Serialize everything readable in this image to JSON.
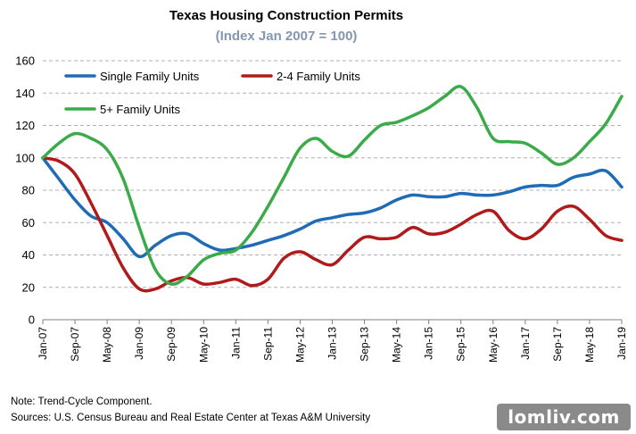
{
  "chart_data": {
    "type": "line",
    "title": "Texas Housing Construction Permits",
    "subtitle": "(Index Jan 2007 = 100)",
    "ylim": [
      0,
      160
    ],
    "yticks": [
      0,
      20,
      40,
      60,
      80,
      100,
      120,
      140,
      160
    ],
    "x_domain": [
      "Jan-07",
      "Jan-19"
    ],
    "x_tick_labels": [
      "Jan-07",
      "Sep-07",
      "May-08",
      "Jan-09",
      "Sep-09",
      "May-10",
      "Jan-11",
      "Sep-11",
      "May-12",
      "Jan-13",
      "Sep-13",
      "May-14",
      "Jan-15",
      "Sep-15",
      "May-16",
      "Jan-17",
      "Sep-17",
      "May-18",
      "Jan-19"
    ],
    "grid": "horizontal-dashed",
    "legend_position": "top-left",
    "series": [
      {
        "name": "Single Family Units",
        "color": "#1f6bb5",
        "points": [
          [
            "Jan-07",
            100
          ],
          [
            "May-07",
            87
          ],
          [
            "Sep-07",
            74
          ],
          [
            "Jan-08",
            64
          ],
          [
            "May-08",
            60
          ],
          [
            "Sep-08",
            50
          ],
          [
            "Jan-09",
            39
          ],
          [
            "May-09",
            46
          ],
          [
            "Sep-09",
            52
          ],
          [
            "Jan-10",
            53
          ],
          [
            "May-10",
            47
          ],
          [
            "Sep-10",
            43
          ],
          [
            "Jan-11",
            44
          ],
          [
            "May-11",
            46
          ],
          [
            "Sep-11",
            49
          ],
          [
            "Jan-12",
            52
          ],
          [
            "May-12",
            56
          ],
          [
            "Sep-12",
            61
          ],
          [
            "Jan-13",
            63
          ],
          [
            "May-13",
            65
          ],
          [
            "Sep-13",
            66
          ],
          [
            "Jan-14",
            69
          ],
          [
            "May-14",
            74
          ],
          [
            "Sep-14",
            77
          ],
          [
            "Jan-15",
            76
          ],
          [
            "May-15",
            76
          ],
          [
            "Sep-15",
            78
          ],
          [
            "Jan-16",
            77
          ],
          [
            "May-16",
            77
          ],
          [
            "Sep-16",
            79
          ],
          [
            "Jan-17",
            82
          ],
          [
            "May-17",
            83
          ],
          [
            "Sep-17",
            83
          ],
          [
            "Jan-18",
            88
          ],
          [
            "May-18",
            90
          ],
          [
            "Sep-18",
            92
          ],
          [
            "Jan-19",
            82
          ]
        ]
      },
      {
        "name": "2-4 Family Units",
        "color": "#b01a1a",
        "points": [
          [
            "Jan-07",
            100
          ],
          [
            "May-07",
            98
          ],
          [
            "Sep-07",
            90
          ],
          [
            "Jan-08",
            72
          ],
          [
            "May-08",
            52
          ],
          [
            "Sep-08",
            32
          ],
          [
            "Jan-09",
            19
          ],
          [
            "May-09",
            19
          ],
          [
            "Sep-09",
            24
          ],
          [
            "Jan-10",
            26
          ],
          [
            "May-10",
            22
          ],
          [
            "Sep-10",
            23
          ],
          [
            "Jan-11",
            25
          ],
          [
            "May-11",
            21
          ],
          [
            "Sep-11",
            25
          ],
          [
            "Jan-12",
            38
          ],
          [
            "May-12",
            42
          ],
          [
            "Sep-12",
            37
          ],
          [
            "Jan-13",
            34
          ],
          [
            "May-13",
            43
          ],
          [
            "Sep-13",
            51
          ],
          [
            "Jan-14",
            50
          ],
          [
            "May-14",
            51
          ],
          [
            "Sep-14",
            57
          ],
          [
            "Jan-15",
            53
          ],
          [
            "May-15",
            54
          ],
          [
            "Sep-15",
            59
          ],
          [
            "Jan-16",
            65
          ],
          [
            "May-16",
            67
          ],
          [
            "Sep-16",
            55
          ],
          [
            "Jan-17",
            50
          ],
          [
            "May-17",
            56
          ],
          [
            "Sep-17",
            67
          ],
          [
            "Jan-18",
            70
          ],
          [
            "May-18",
            62
          ],
          [
            "Sep-18",
            52
          ],
          [
            "Jan-19",
            49
          ]
        ]
      },
      {
        "name": "5+ Family Units",
        "color": "#3bab4a",
        "points": [
          [
            "Jan-07",
            100
          ],
          [
            "May-07",
            109
          ],
          [
            "Sep-07",
            115
          ],
          [
            "Jan-08",
            112
          ],
          [
            "May-08",
            105
          ],
          [
            "Sep-08",
            87
          ],
          [
            "Jan-09",
            57
          ],
          [
            "May-09",
            31
          ],
          [
            "Sep-09",
            22
          ],
          [
            "Jan-10",
            27
          ],
          [
            "May-10",
            37
          ],
          [
            "Sep-10",
            41
          ],
          [
            "Jan-11",
            43
          ],
          [
            "May-11",
            54
          ],
          [
            "Sep-11",
            70
          ],
          [
            "Jan-12",
            88
          ],
          [
            "May-12",
            106
          ],
          [
            "Sep-12",
            112
          ],
          [
            "Jan-13",
            104
          ],
          [
            "May-13",
            101
          ],
          [
            "Sep-13",
            111
          ],
          [
            "Jan-14",
            120
          ],
          [
            "May-14",
            122
          ],
          [
            "Sep-14",
            126
          ],
          [
            "Jan-15",
            131
          ],
          [
            "May-15",
            138
          ],
          [
            "Sep-15",
            144
          ],
          [
            "Jan-16",
            131
          ],
          [
            "May-16",
            112
          ],
          [
            "Sep-16",
            110
          ],
          [
            "Jan-17",
            109
          ],
          [
            "May-17",
            103
          ],
          [
            "Sep-17",
            96
          ],
          [
            "Jan-18",
            100
          ],
          [
            "May-18",
            110
          ],
          [
            "Sep-18",
            121
          ],
          [
            "Jan-19",
            138
          ]
        ]
      }
    ]
  },
  "footer": {
    "note": "Note: Trend-Cycle Component.",
    "source": "Sources: U.S. Census Bureau and Real Estate Center at Texas A&M University"
  },
  "watermark": "lomliv.com"
}
